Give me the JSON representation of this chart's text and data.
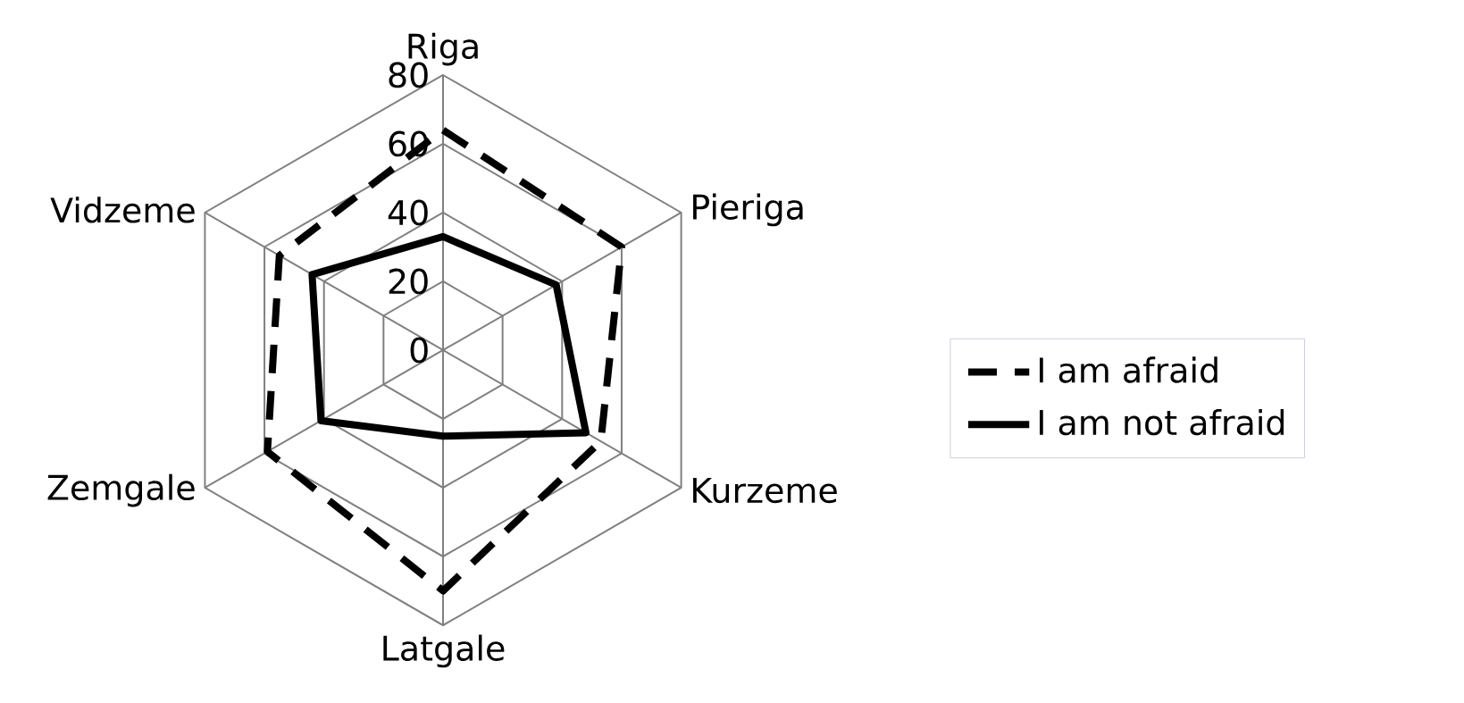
{
  "chart_data": {
    "type": "radar",
    "categories": [
      "Riga",
      "Pieriga",
      "Kurzeme",
      "Latgale",
      "Zemgale",
      "Vidzeme"
    ],
    "series": [
      {
        "name": "I am afraid",
        "color": "#000000",
        "line_style": "dashed",
        "values": [
          64,
          60,
          53,
          70,
          59,
          55
        ]
      },
      {
        "name": "I am not afraid",
        "color": "#000000",
        "line_style": "solid",
        "values": [
          33,
          38,
          48,
          25,
          41,
          44
        ]
      }
    ],
    "ylim": [
      0,
      80
    ],
    "yticks": [
      0,
      20,
      40,
      60,
      80
    ],
    "grid": true,
    "legend": "right"
  }
}
